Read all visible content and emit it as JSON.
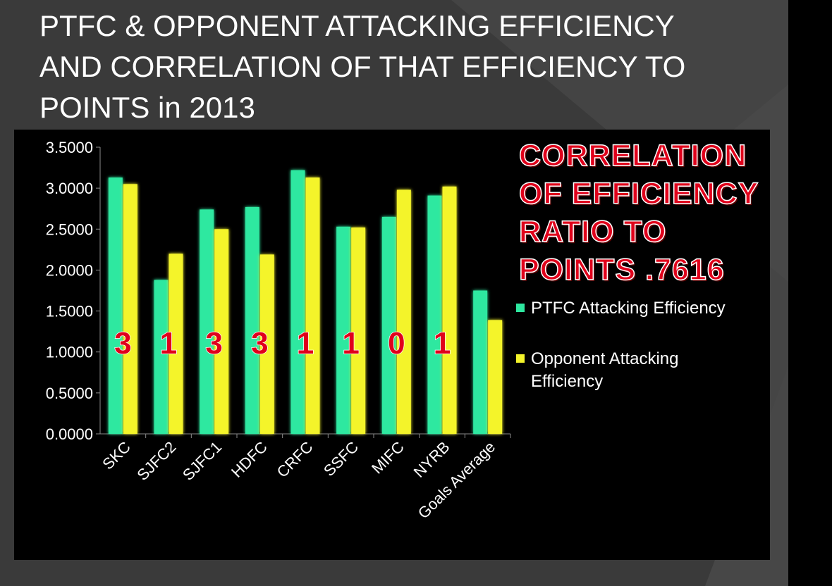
{
  "title_lines": [
    "PTFC & OPPONENT ATTACKING EFFICIENCY",
    "AND CORRELATION OF THAT EFFICIENCY TO",
    "POINTS in 2013"
  ],
  "correlation_lines": [
    "CORRELATION",
    "OF EFFICIENCY",
    "RATIO TO",
    "POINTS .7616"
  ],
  "colors": {
    "ptfc": "#2ee8a0",
    "opponent": "#f4f42a",
    "points_label": "#e0001b",
    "panel": "#000000",
    "background": "#3a3a3a"
  },
  "chart_data": {
    "type": "bar",
    "categories": [
      "SKC",
      "SJFC2",
      "SJFC1",
      "HDFC",
      "CRFC",
      "SSFC",
      "MIFC",
      "NYRB",
      "Goals Average"
    ],
    "series": [
      {
        "name": "PTFC Attacking Efficiency",
        "values": [
          3.13,
          1.88,
          2.74,
          2.77,
          3.22,
          2.53,
          2.65,
          2.91,
          1.75
        ]
      },
      {
        "name": "Opponent Attacking Efficiency",
        "values": [
          3.05,
          2.2,
          2.5,
          2.19,
          3.13,
          2.52,
          2.98,
          3.02,
          1.39
        ]
      }
    ],
    "points_labels": [
      "3",
      "1",
      "3",
      "3",
      "1",
      "1",
      "0",
      "1"
    ],
    "y_ticks": [
      "3.5000",
      "3.0000",
      "2.5000",
      "2.0000",
      "1.5000",
      "1.0000",
      "0.5000",
      "0.0000"
    ],
    "ylim": [
      0,
      3.5
    ],
    "legend_position": "right",
    "grid": false
  }
}
